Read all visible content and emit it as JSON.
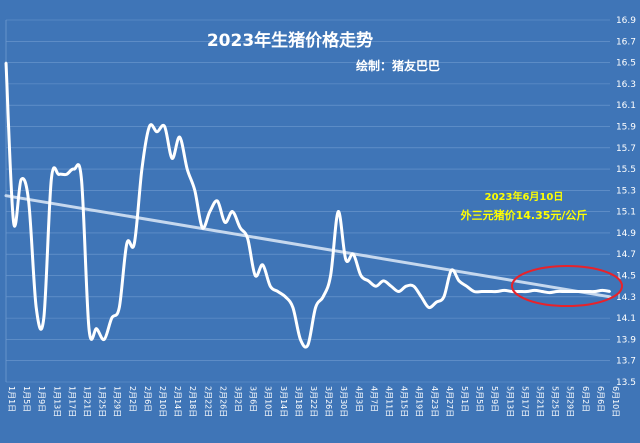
{
  "chart_data": {
    "type": "line",
    "title": "2023年生猪价格走势",
    "subtitle": "绘制：猪友巴巴",
    "annotation": {
      "line1": "2023年6月10日",
      "line2": "外三元猪价14.35元/公斤"
    },
    "xlabel": "",
    "ylabel": "",
    "ylim": [
      13.5,
      16.9
    ],
    "y_ticks": [
      13.5,
      13.7,
      13.9,
      14.1,
      14.3,
      14.5,
      14.7,
      14.9,
      15.1,
      15.3,
      15.5,
      15.7,
      15.9,
      16.1,
      16.3,
      16.5,
      16.7,
      16.9
    ],
    "x_tick_labels": [
      "1月1日",
      "1月5日",
      "1月9日",
      "1月13日",
      "1月17日",
      "1月21日",
      "1月25日",
      "1月29日",
      "2月2日",
      "2月6日",
      "2月10日",
      "2月14日",
      "2月18日",
      "2月22日",
      "2月26日",
      "3月2日",
      "3月6日",
      "3月10日",
      "3月14日",
      "3月18日",
      "3月22日",
      "3月26日",
      "3月30日",
      "4月3日",
      "4月7日",
      "4月11日",
      "4月15日",
      "4月19日",
      "4月23日",
      "4月27日",
      "5月1日",
      "5月5日",
      "5月9日",
      "5月13日",
      "5月17日",
      "5月21日",
      "5月25日",
      "5月29日",
      "6月2日",
      "6月6日",
      "6月10日"
    ],
    "x": [
      "1月1日",
      "1月3日",
      "1月5日",
      "1月7日",
      "1月9日",
      "1月11日",
      "1月13日",
      "1月15日",
      "1月17日",
      "1月19日",
      "1月21日",
      "1月23日",
      "1月25日",
      "1月27日",
      "1月29日",
      "1月31日",
      "2月2日",
      "2月4日",
      "2月6日",
      "2月8日",
      "2月10日",
      "2月12日",
      "2月14日",
      "2月16日",
      "2月18日",
      "2月20日",
      "2月22日",
      "2月24日",
      "2月26日",
      "2月28日",
      "3月2日",
      "3月4日",
      "3月6日",
      "3月8日",
      "3月10日",
      "3月12日",
      "3月14日",
      "3月16日",
      "3月18日",
      "3月20日",
      "3月22日",
      "3月24日",
      "3月26日",
      "3月28日",
      "3月30日",
      "4月1日",
      "4月3日",
      "4月5日",
      "4月7日",
      "4月9日",
      "4月11日",
      "4月13日",
      "4月15日",
      "4月17日",
      "4月19日",
      "4月21日",
      "4月23日",
      "4月25日",
      "4月27日",
      "4月29日",
      "5月1日",
      "5月3日",
      "5月5日",
      "5月7日",
      "5月9日",
      "5月11日",
      "5月13日",
      "5月15日",
      "5月17日",
      "5月19日",
      "5月21日",
      "5月23日",
      "5月25日",
      "5月27日",
      "5月29日",
      "5月31日",
      "6月2日",
      "6月4日",
      "6月6日",
      "6月8日",
      "6月10日"
    ],
    "series": [
      {
        "values": [
          16.5,
          15.0,
          15.4,
          15.2,
          14.2,
          14.1,
          15.4,
          15.45,
          15.45,
          15.5,
          15.4,
          14.0,
          14.0,
          13.9,
          14.1,
          14.2,
          14.8,
          14.8,
          15.5,
          15.9,
          15.85,
          15.9,
          15.6,
          15.8,
          15.5,
          15.3,
          14.95,
          15.1,
          15.2,
          15.0,
          15.1,
          14.95,
          14.85,
          14.5,
          14.6,
          14.4,
          14.35,
          14.3,
          14.2,
          13.9,
          13.85,
          14.2,
          14.3,
          14.5,
          15.1,
          14.65,
          14.7,
          14.5,
          14.45,
          14.4,
          14.45,
          14.4,
          14.35,
          14.4,
          14.4,
          14.3,
          14.2,
          14.25,
          14.3,
          14.55,
          14.45,
          14.4,
          14.35,
          14.35,
          14.35,
          14.35,
          14.36,
          14.35,
          14.35,
          14.35,
          14.36,
          14.35,
          14.34,
          14.35,
          14.35,
          14.35,
          14.35,
          14.35,
          14.35,
          14.36,
          14.35
        ]
      }
    ],
    "trendline": {
      "start": 15.25,
      "end": 14.3
    },
    "grid": true,
    "legend": "none",
    "colors": {
      "background": "#3f75b7",
      "line": "#ffffff",
      "trend": "#c6d8ee",
      "highlight": "#e8222a",
      "annotation_text": "#ffff00"
    }
  }
}
